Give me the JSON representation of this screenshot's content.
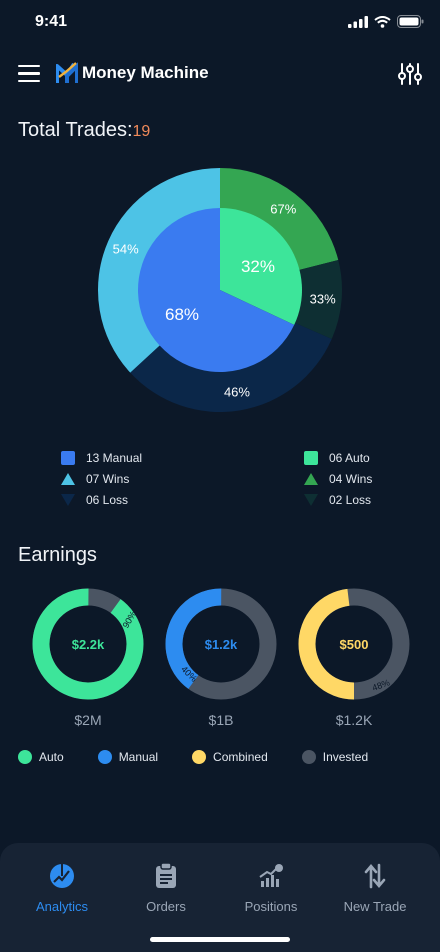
{
  "status": {
    "time": "9:41"
  },
  "header": {
    "title": "Money Machine",
    "menu_icon": "hamburger-icon",
    "filter_icon": "sliders-icon"
  },
  "trades": {
    "title": "Total Trades:",
    "count": "19",
    "inner": [
      {
        "label": "68%",
        "value": 68,
        "color": "#3a7bf0"
      },
      {
        "label": "32%",
        "value": 32,
        "color": "#3de59a"
      }
    ],
    "outer": [
      {
        "label": "67%",
        "value": 4,
        "color": "#34a652"
      },
      {
        "label": "33%",
        "value": 2,
        "color": "#0e2f33"
      },
      {
        "label": "46%",
        "value": 6,
        "color": "#0b2749"
      },
      {
        "label": "54%",
        "value": 7,
        "color": "#4dc3e6"
      }
    ],
    "legend_left": [
      {
        "label": "13 Manual",
        "shape": "square",
        "color": "#3a7bf0"
      },
      {
        "label": "07 Wins",
        "shape": "triangle-up",
        "color": "#4dc3e6"
      },
      {
        "label": "06 Loss",
        "shape": "triangle-down",
        "color": "#0b2749"
      }
    ],
    "legend_right": [
      {
        "label": "06 Auto",
        "shape": "square",
        "color": "#3de59a"
      },
      {
        "label": "04 Wins",
        "shape": "triangle-up",
        "color": "#34a652"
      },
      {
        "label": "02 Loss",
        "shape": "triangle-down",
        "color": "#0e2f33"
      }
    ]
  },
  "earnings": {
    "title": "Earnings",
    "rings": [
      {
        "center": "$2.2k",
        "percent_label": "90%",
        "fraction": 0.9,
        "color": "#3de59a",
        "subtitle": "$2M"
      },
      {
        "center": "$1.2k",
        "percent_label": "40%",
        "fraction": 0.4,
        "color": "#2d8cf0",
        "subtitle": "$1B"
      },
      {
        "center": "$500",
        "percent_label": "48%",
        "fraction": 0.48,
        "color": "#ffd866",
        "subtitle": "$1.2K"
      }
    ],
    "track_color": "#4b5563",
    "legend": [
      {
        "label": "Auto",
        "color": "#3de59a"
      },
      {
        "label": "Manual",
        "color": "#2d8cf0"
      },
      {
        "label": "Combined",
        "color": "#ffd866"
      },
      {
        "label": "Invested",
        "color": "#4b5563"
      }
    ]
  },
  "tabs": [
    {
      "label": "Analytics",
      "icon": "analytics-icon",
      "active": true
    },
    {
      "label": "Orders",
      "icon": "clipboard-icon",
      "active": false
    },
    {
      "label": "Positions",
      "icon": "growth-chart-icon",
      "active": false
    },
    {
      "label": "New Trade",
      "icon": "swap-arrows-icon",
      "active": false
    }
  ]
}
